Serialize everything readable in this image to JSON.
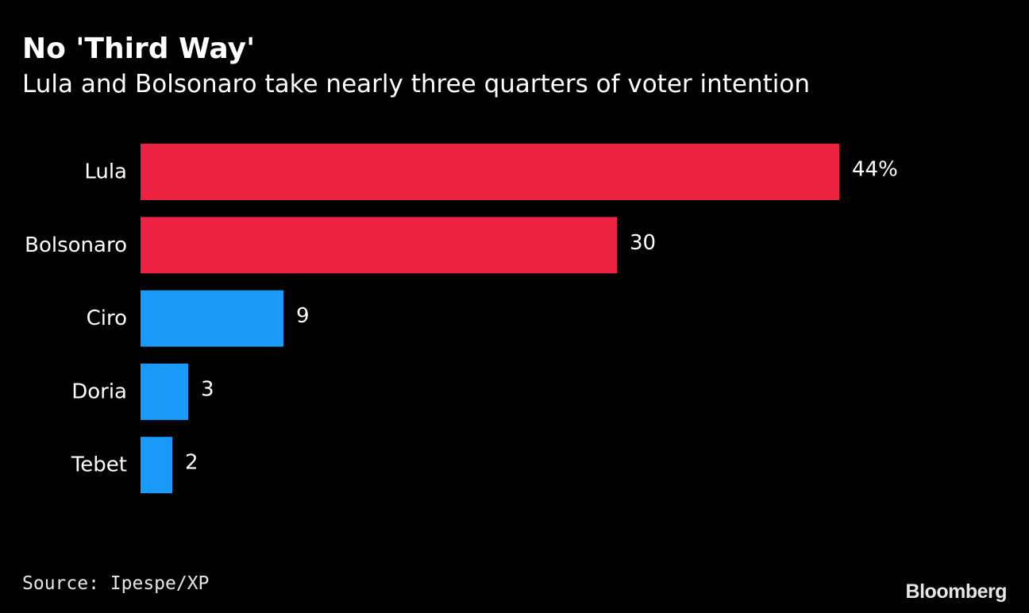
{
  "title": "No 'Third Way'",
  "subtitle": "Lula and Bolsonaro take nearly three quarters of voter intention",
  "source": "Source: Ipespe/XP",
  "logo": "Bloomberg",
  "colors": {
    "background": "#000000",
    "major_candidates": "#ed2141",
    "other_candidates": "#1a9bfc",
    "text": "#ffffff"
  },
  "chart_data": {
    "type": "bar",
    "orientation": "horizontal",
    "title": "No 'Third Way'",
    "subtitle": "Lula and Bolsonaro take nearly three quarters of voter intention",
    "categories": [
      "Lula",
      "Bolsonaro",
      "Ciro",
      "Doria",
      "Tebet"
    ],
    "values": [
      44,
      30,
      9,
      3,
      2
    ],
    "data_labels": [
      "44%",
      "30",
      "9",
      "3",
      "2"
    ],
    "bar_colors": [
      "#ed2141",
      "#ed2141",
      "#1a9bfc",
      "#1a9bfc",
      "#1a9bfc"
    ],
    "xlim": [
      0,
      44
    ],
    "xlabel": "",
    "ylabel": "",
    "grid": false,
    "legend": "none"
  }
}
